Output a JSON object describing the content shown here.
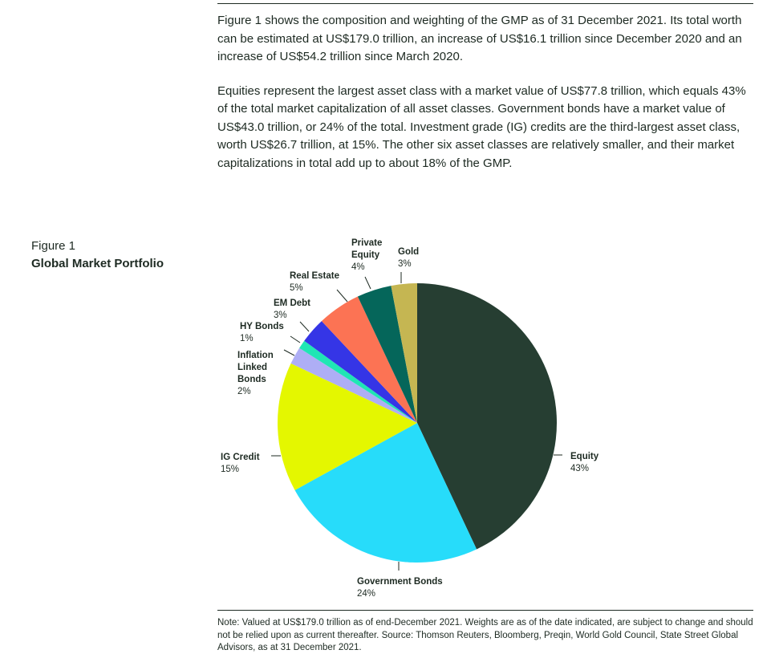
{
  "intro": {
    "paragraph1": "Figure 1 shows the composition and weighting of the GMP as of 31 December 2021. Its total worth can be estimated at US$179.0 trillion, an increase of US$16.1 trillion since December 2020 and an increase of US$54.2 trillion since March 2020.",
    "paragraph2": "Equities represent the largest asset class with a market value of US$77.8 trillion, which equals 43% of the total market capitalization of all asset classes. Government bonds have a market value of US$43.0 trillion, or 24% of the total. Investment grade (IG) credits are the third-largest asset class, worth US$26.7 trillion, at 15%. The other six asset classes are relatively smaller, and their market capitalizations in total add up to about 18% of the GMP."
  },
  "figure": {
    "label": "Figure 1",
    "title": "Global Market Portfolio"
  },
  "chart_data": {
    "type": "pie",
    "title": "Global Market Portfolio",
    "unit": "%",
    "slices": [
      {
        "name": "Equity",
        "name_lines": [
          "Equity"
        ],
        "value": 43,
        "value_label": "43%",
        "color": "#263e32"
      },
      {
        "name": "Government Bonds",
        "name_lines": [
          "Government Bonds"
        ],
        "value": 24,
        "value_label": "24%",
        "color": "#27dcfa"
      },
      {
        "name": "IG Credit",
        "name_lines": [
          "IG Credit"
        ],
        "value": 15,
        "value_label": "15%",
        "color": "#e4f700"
      },
      {
        "name": "Inflation Linked Bonds",
        "name_lines": [
          "Inflation",
          "Linked",
          "Bonds"
        ],
        "value": 2,
        "value_label": "2%",
        "color": "#aeaef5"
      },
      {
        "name": "HY Bonds",
        "name_lines": [
          "HY Bonds"
        ],
        "value": 1,
        "value_label": "1%",
        "color": "#20e6b4"
      },
      {
        "name": "EM Debt",
        "name_lines": [
          "EM Debt"
        ],
        "value": 3,
        "value_label": "3%",
        "color": "#3535e6"
      },
      {
        "name": "Real Estate",
        "name_lines": [
          "Real Estate"
        ],
        "value": 5,
        "value_label": "5%",
        "color": "#fc7354"
      },
      {
        "name": "Private Equity",
        "name_lines": [
          "Private",
          "Equity"
        ],
        "value": 4,
        "value_label": "4%",
        "color": "#05665a"
      },
      {
        "name": "Gold",
        "name_lines": [
          "Gold"
        ],
        "value": 3,
        "value_label": "3%",
        "color": "#c5b652"
      }
    ]
  },
  "note": "Note: Valued at US$179.0 trillion as of end-December 2021. Weights are as of the date indicated, are subject to change and should not be relied upon as current thereafter. Source: Thomson Reuters, Bloomberg, Preqin, World Gold Council, State Street Global Advisors, as at 31 December 2021."
}
